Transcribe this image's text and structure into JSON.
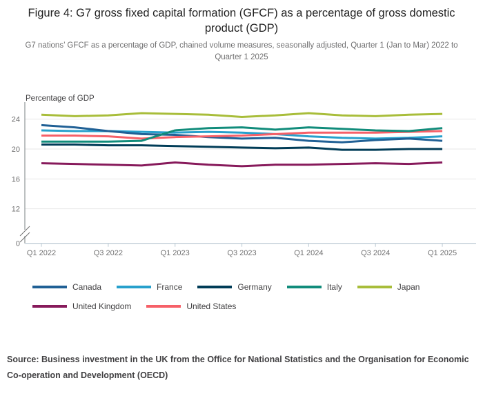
{
  "chart_data": {
    "type": "line",
    "title": "Figure 4: G7 gross fixed capital formation (GFCF) as a percentage of gross domestic product (GDP)",
    "subtitle": "G7 nations’ GFCF as a percentage of GDP, chained volume measures, seasonally adjusted, Quarter 1 (Jan to Mar) 2022 to Quarter 1 2025",
    "source": "Source: Business investment in the UK from the Office for National Statistics and the Organisation for Economic Co-operation and Development (OECD)",
    "ylabel": "Percentage of GDP",
    "xlabel": "",
    "x": [
      "Q1 2022",
      "Q2 2022",
      "Q3 2022",
      "Q4 2022",
      "Q1 2023",
      "Q2 2023",
      "Q3 2023",
      "Q4 2023",
      "Q1 2024",
      "Q2 2024",
      "Q3 2024",
      "Q4 2024",
      "Q1 2025"
    ],
    "x_tick_labels": [
      "Q1 2022",
      "Q3 2022",
      "Q1 2023",
      "Q3 2023",
      "Q1 2024",
      "Q3 2024",
      "Q1 2025"
    ],
    "y_ticks": [
      0,
      12,
      16,
      20,
      24
    ],
    "ylim": [
      12,
      26
    ],
    "axis_break_at_zero": true,
    "grid": true,
    "legend_position": "bottom",
    "series": [
      {
        "name": "Canada",
        "color": "#206095",
        "values": [
          23.2,
          22.9,
          22.4,
          22.0,
          21.9,
          21.6,
          21.4,
          21.5,
          21.1,
          20.9,
          21.2,
          21.4,
          21.1
        ]
      },
      {
        "name": "France",
        "color": "#27A0CC",
        "values": [
          22.5,
          22.4,
          22.4,
          22.3,
          22.2,
          22.3,
          22.2,
          22.0,
          21.7,
          21.5,
          21.4,
          21.5,
          21.7
        ]
      },
      {
        "name": "Germany",
        "color": "#003C57",
        "values": [
          20.6,
          20.6,
          20.5,
          20.5,
          20.4,
          20.3,
          20.2,
          20.1,
          20.2,
          19.9,
          19.9,
          20.0,
          20.0
        ]
      },
      {
        "name": "Italy",
        "color": "#118C7B",
        "values": [
          21.0,
          21.0,
          21.0,
          21.1,
          22.5,
          22.8,
          22.9,
          22.6,
          22.9,
          22.7,
          22.5,
          22.4,
          22.8
        ]
      },
      {
        "name": "Japan",
        "color": "#A8BD3A",
        "values": [
          24.6,
          24.4,
          24.5,
          24.8,
          24.7,
          24.6,
          24.3,
          24.5,
          24.8,
          24.5,
          24.4,
          24.6,
          24.7
        ]
      },
      {
        "name": "United Kingdom",
        "color": "#871A5B",
        "values": [
          18.1,
          18.0,
          17.9,
          17.8,
          18.2,
          17.9,
          17.7,
          17.9,
          17.9,
          18.0,
          18.1,
          18.0,
          18.2
        ]
      },
      {
        "name": "United States",
        "color": "#F66068",
        "values": [
          21.8,
          21.8,
          21.7,
          21.4,
          21.6,
          21.7,
          21.8,
          22.0,
          22.2,
          22.2,
          22.2,
          22.3,
          22.4
        ]
      }
    ]
  }
}
